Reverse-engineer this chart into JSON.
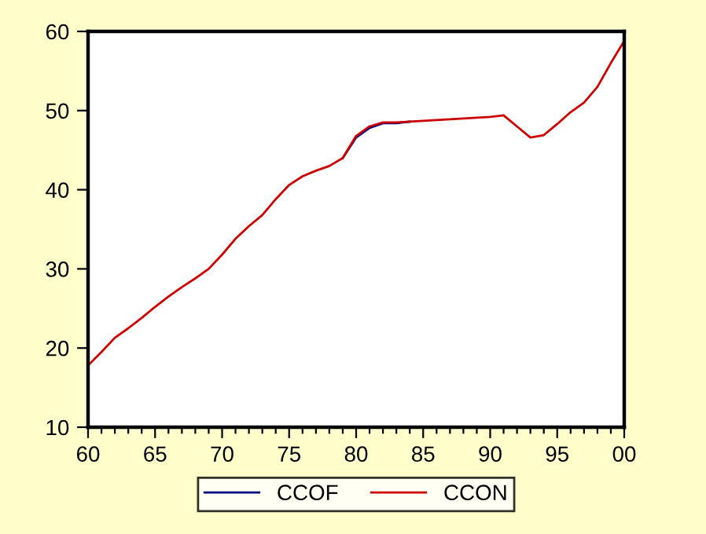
{
  "chart_data": {
    "type": "line",
    "x": [
      1960,
      1961,
      1962,
      1963,
      1964,
      1965,
      1966,
      1967,
      1968,
      1969,
      1970,
      1971,
      1972,
      1973,
      1974,
      1975,
      1976,
      1977,
      1978,
      1979,
      1980,
      1981,
      1982,
      1983,
      1984,
      1985,
      1986,
      1987,
      1988,
      1989,
      1990,
      1991,
      1992,
      1993,
      1994,
      1995,
      1996,
      1997,
      1998,
      1999,
      2000
    ],
    "series": [
      {
        "name": "CCOF",
        "color": "#000080",
        "values": [
          null,
          null,
          null,
          null,
          null,
          null,
          null,
          null,
          null,
          null,
          null,
          null,
          null,
          null,
          null,
          null,
          null,
          null,
          null,
          44.0,
          46.6,
          47.8,
          48.4,
          48.4,
          48.6,
          null,
          null,
          null,
          null,
          null,
          null,
          null,
          null,
          null,
          null,
          null,
          null,
          null,
          null,
          null,
          null
        ]
      },
      {
        "name": "CCON",
        "color": "#cc0000",
        "values": [
          17.8,
          19.5,
          21.3,
          22.5,
          23.8,
          25.2,
          26.5,
          27.7,
          28.8,
          30.0,
          31.8,
          33.8,
          35.4,
          36.8,
          38.8,
          40.6,
          41.7,
          42.4,
          43.0,
          44.0,
          46.8,
          48.0,
          48.5,
          48.5,
          48.6,
          48.7,
          48.8,
          48.9,
          49.0,
          49.1,
          49.2,
          49.4,
          48.0,
          46.6,
          46.9,
          48.3,
          49.8,
          51.0,
          53.0,
          56.0,
          58.8
        ]
      }
    ],
    "xlim": [
      1960,
      2000
    ],
    "xticks": [
      {
        "value": 1960,
        "label": "60"
      },
      {
        "value": 1965,
        "label": "65"
      },
      {
        "value": 1970,
        "label": "70"
      },
      {
        "value": 1975,
        "label": "75"
      },
      {
        "value": 1980,
        "label": "80"
      },
      {
        "value": 1985,
        "label": "85"
      },
      {
        "value": 1990,
        "label": "90"
      },
      {
        "value": 1995,
        "label": "95"
      },
      {
        "value": 2000,
        "label": "00"
      }
    ],
    "ylim": [
      10,
      60
    ],
    "yticks": [
      10,
      20,
      30,
      40,
      50,
      60
    ],
    "grid": false,
    "legend": "bottom",
    "marker": "none",
    "line_style": "solid"
  }
}
